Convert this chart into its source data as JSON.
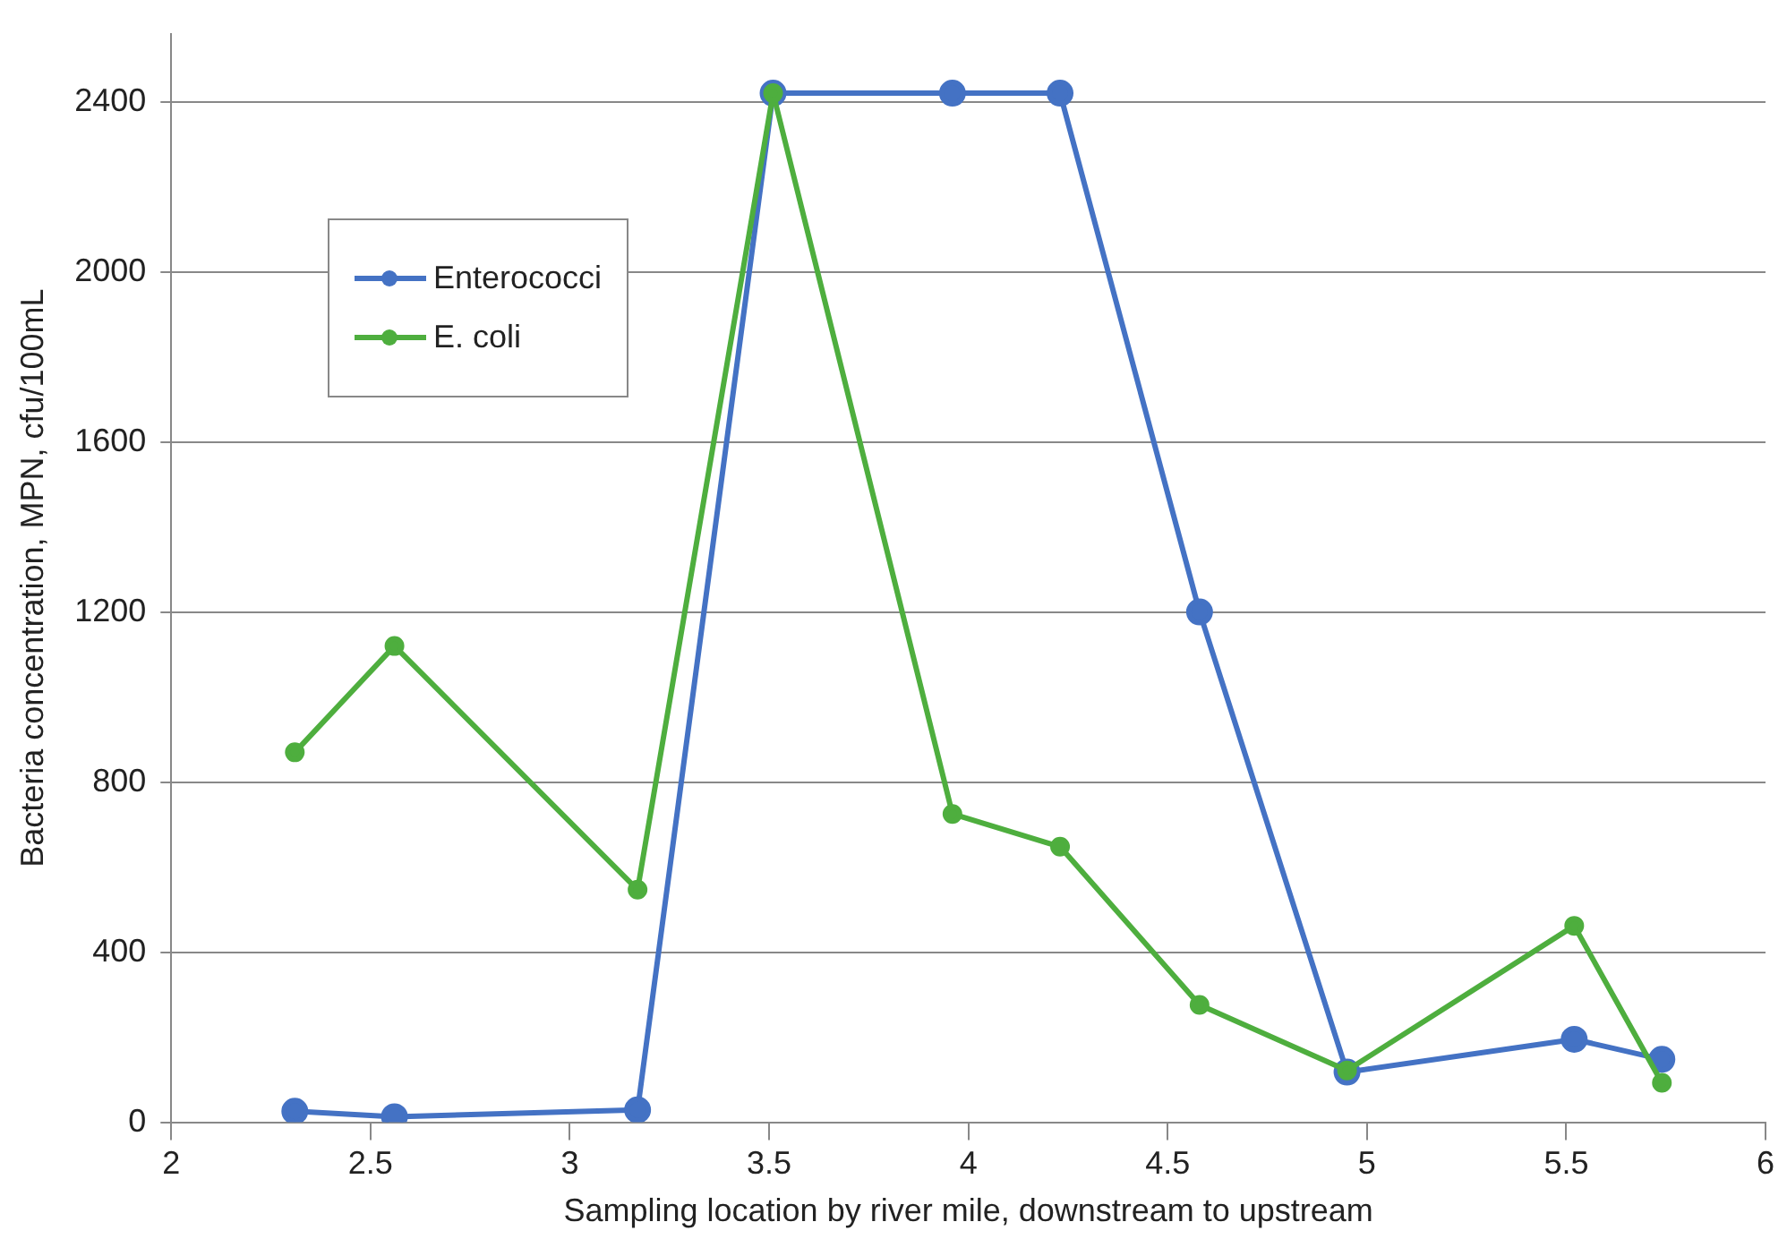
{
  "chart_data": {
    "type": "line",
    "xlabel": "Sampling location by river mile, downstream to upstream",
    "ylabel": "Bacteria concentration, MPN, cfu/100mL",
    "x": [
      2.31,
      2.56,
      3.17,
      3.51,
      3.96,
      4.23,
      4.58,
      4.95,
      5.52,
      5.74
    ],
    "series": [
      {
        "name": "Enterococci",
        "color": "#4472c4",
        "values": [
          26,
          13,
          29,
          2420,
          2420,
          2420,
          1200,
          118,
          195,
          148
        ]
      },
      {
        "name": "E. coli",
        "color": "#4eae3e",
        "values": [
          870,
          1120,
          547,
          2420,
          725,
          648,
          276,
          122,
          462,
          93
        ]
      }
    ],
    "xlim": [
      2,
      6
    ],
    "xticks": [
      2,
      2.5,
      3,
      3.5,
      4,
      4.5,
      5,
      5.5,
      6
    ],
    "ylim": [
      0,
      2560
    ],
    "yticks": [
      0,
      400,
      800,
      1200,
      1600,
      2000,
      2400
    ],
    "grid": "y",
    "legend": "top left",
    "marker": "circle",
    "line_style": "solid"
  }
}
